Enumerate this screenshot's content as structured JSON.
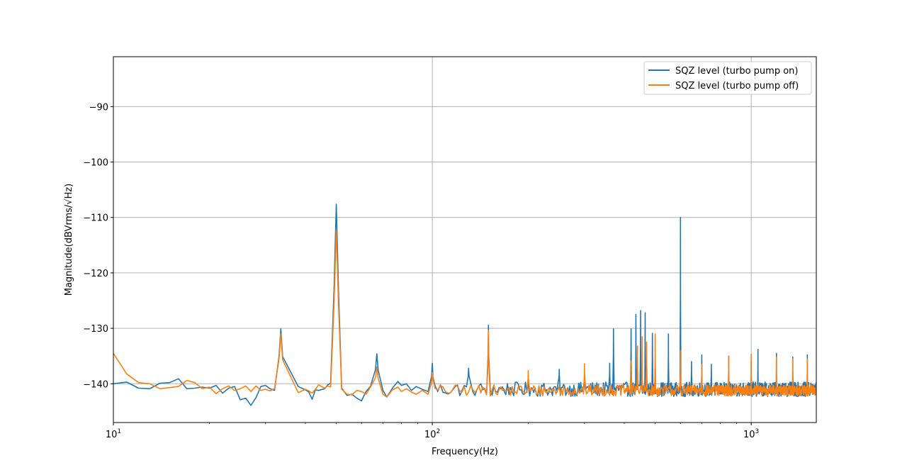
{
  "colors": {
    "series_on": "#1f77b4",
    "series_off": "#ff7f0e",
    "grid": "#b0b0b0",
    "axes": "#000000",
    "legend_border": "#cccccc"
  },
  "chart_data": {
    "type": "line",
    "xlabel": "Frequency(Hz)",
    "ylabel": "Magnitude(dBVrms/√Hz)",
    "xscale": "log",
    "xlim": [
      10,
      1600
    ],
    "ylim": [
      -147,
      -81
    ],
    "grid": true,
    "legend_position": "top-right",
    "xticks": [
      {
        "value": 10,
        "base": "10",
        "exp": "1"
      },
      {
        "value": 100,
        "base": "10",
        "exp": "2"
      },
      {
        "value": 1000,
        "base": "10",
        "exp": "3"
      }
    ],
    "yticks": [
      {
        "value": -90,
        "label": "−90"
      },
      {
        "value": -100,
        "label": "−100"
      },
      {
        "value": -110,
        "label": "−110"
      },
      {
        "value": -120,
        "label": "−120"
      },
      {
        "value": -130,
        "label": "−130"
      },
      {
        "value": -140,
        "label": "−140"
      }
    ],
    "series": [
      {
        "name": "SQZ level (turbo pump on)",
        "color": "#1f77b4",
        "baseline": [
          [
            10,
            -140
          ],
          [
            11,
            -139.7
          ],
          [
            12,
            -140.8
          ],
          [
            13,
            -140.9
          ],
          [
            14,
            -139.9
          ],
          [
            15,
            -139.8
          ],
          [
            16,
            -139.1
          ],
          [
            17,
            -140.9
          ],
          [
            18,
            -140.8
          ],
          [
            19,
            -140.6
          ],
          [
            20,
            -140.8
          ],
          [
            21,
            -140.3
          ],
          [
            22,
            -141.7
          ],
          [
            23,
            -140.8
          ],
          [
            24,
            -140.5
          ],
          [
            25,
            -142.9
          ],
          [
            26,
            -142.6
          ],
          [
            27,
            -143.9
          ],
          [
            28,
            -142.5
          ],
          [
            29,
            -140.5
          ],
          [
            30,
            -140.3
          ],
          [
            31,
            -140.9
          ],
          [
            32,
            -141.2
          ],
          [
            38,
            -140.5
          ],
          [
            40,
            -141.1
          ],
          [
            41,
            -141.5
          ],
          [
            42,
            -142.8
          ],
          [
            43,
            -141.1
          ],
          [
            44,
            -141.2
          ],
          [
            46,
            -140.9
          ],
          [
            47,
            -140.2
          ],
          [
            48,
            -140.6
          ],
          [
            52,
            -141.5
          ],
          [
            54,
            -142.1
          ],
          [
            56,
            -141.9
          ],
          [
            58,
            -142.6
          ],
          [
            60,
            -143.1
          ],
          [
            62,
            -141.4
          ],
          [
            64,
            -140.5
          ],
          [
            70,
            -141.2
          ],
          [
            72,
            -142.4
          ],
          [
            75,
            -140.8
          ],
          [
            78,
            -139.6
          ],
          [
            80,
            -140.3
          ],
          [
            83,
            -140.0
          ],
          [
            86,
            -141.2
          ],
          [
            89,
            -140.5
          ],
          [
            93,
            -141.0
          ],
          [
            97,
            -141.4
          ]
        ],
        "noise_from_hz": 100,
        "noise_level": -141,
        "noise_amplitude": 1.3,
        "peaks": [
          [
            33.5,
            -130.1,
            0.9
          ],
          [
            50,
            -107.6,
            1.6
          ],
          [
            67,
            -134.6,
            1.3
          ],
          [
            100,
            -136.3,
            1.0
          ],
          [
            130,
            -137.2,
            0.8
          ],
          [
            150,
            -129.4,
            0.6
          ],
          [
            200,
            -139.2,
            0.6
          ],
          [
            250,
            -137.4,
            0.6
          ],
          [
            300,
            -138.4,
            0.6
          ],
          [
            360,
            -136.3,
            0.7
          ],
          [
            370,
            -130.1,
            0.6
          ],
          [
            420,
            -130.1,
            0.8
          ],
          [
            435,
            -127.5,
            0.6
          ],
          [
            450,
            -126.8,
            0.6
          ],
          [
            465,
            -127.2,
            0.6
          ],
          [
            490,
            -130.9,
            0.8
          ],
          [
            550,
            -131.0,
            0.6
          ],
          [
            600,
            -110.0,
            0.4
          ],
          [
            650,
            -136.0,
            0.6
          ],
          [
            700,
            -134.8,
            0.6
          ],
          [
            750,
            -136.5,
            0.6
          ],
          [
            850,
            -135.0,
            0.6
          ],
          [
            1000,
            -136.0,
            0.6
          ],
          [
            1050,
            -133.8,
            0.6
          ],
          [
            1200,
            -134.5,
            0.6
          ],
          [
            1350,
            -135.2,
            0.6
          ],
          [
            1500,
            -134.8,
            0.6
          ]
        ]
      },
      {
        "name": "SQZ level (turbo pump off)",
        "color": "#ff7f0e",
        "baseline": [
          [
            10,
            -134.5
          ],
          [
            11,
            -138.2
          ],
          [
            12,
            -139.8
          ],
          [
            13,
            -140.0
          ],
          [
            14,
            -140.9
          ],
          [
            15,
            -140.7
          ],
          [
            16,
            -140.5
          ],
          [
            17,
            -139.4
          ],
          [
            18,
            -139.8
          ],
          [
            19,
            -140.9
          ],
          [
            20,
            -140.6
          ],
          [
            21,
            -141.8
          ],
          [
            22,
            -140.9
          ],
          [
            23,
            -140.4
          ],
          [
            24,
            -141.2
          ],
          [
            25,
            -140.9
          ],
          [
            26,
            -140.4
          ],
          [
            27,
            -141.4
          ],
          [
            28,
            -140.4
          ],
          [
            29,
            -141.2
          ],
          [
            30,
            -141.0
          ],
          [
            31,
            -141.3
          ],
          [
            32,
            -140.9
          ],
          [
            38,
            -141.6
          ],
          [
            40,
            -141.0
          ],
          [
            41,
            -141.3
          ],
          [
            42,
            -141.7
          ],
          [
            43,
            -141.0
          ],
          [
            44,
            -140.2
          ],
          [
            46,
            -140.8
          ],
          [
            47,
            -140.4
          ],
          [
            48,
            -141.2
          ],
          [
            52,
            -141.6
          ],
          [
            54,
            -141.9
          ],
          [
            56,
            -142.0
          ],
          [
            58,
            -141.2
          ],
          [
            60,
            -141.4
          ],
          [
            62,
            -141.9
          ],
          [
            64,
            -140.6
          ],
          [
            70,
            -141.9
          ],
          [
            72,
            -142.4
          ],
          [
            75,
            -141.1
          ],
          [
            78,
            -140.6
          ],
          [
            80,
            -141.4
          ],
          [
            83,
            -140.9
          ],
          [
            86,
            -141.5
          ],
          [
            89,
            -141.9
          ],
          [
            93,
            -141.2
          ],
          [
            97,
            -141.9
          ]
        ],
        "noise_from_hz": 100,
        "noise_level": -141.2,
        "noise_amplitude": 1.0,
        "peaks": [
          [
            33.5,
            -131.0,
            0.9
          ],
          [
            50,
            -112.3,
            1.6
          ],
          [
            67,
            -137.0,
            1.3
          ],
          [
            100,
            -138.0,
            1.0
          ],
          [
            150,
            -130.4,
            0.6
          ],
          [
            200,
            -137.6,
            0.6
          ],
          [
            300,
            -136.4,
            0.6
          ],
          [
            420,
            -135.9,
            0.8
          ],
          [
            440,
            -133.2,
            0.6
          ],
          [
            455,
            -131.5,
            0.6
          ],
          [
            470,
            -132.5,
            0.6
          ],
          [
            500,
            -131.0,
            0.6
          ],
          [
            600,
            -134.0,
            0.6
          ],
          [
            700,
            -136.5,
            0.6
          ],
          [
            850,
            -135.0,
            0.6
          ],
          [
            1000,
            -134.7,
            0.6
          ],
          [
            1200,
            -135.2,
            0.6
          ],
          [
            1350,
            -135.5,
            0.6
          ],
          [
            1500,
            -135.5,
            0.6
          ]
        ]
      }
    ]
  }
}
